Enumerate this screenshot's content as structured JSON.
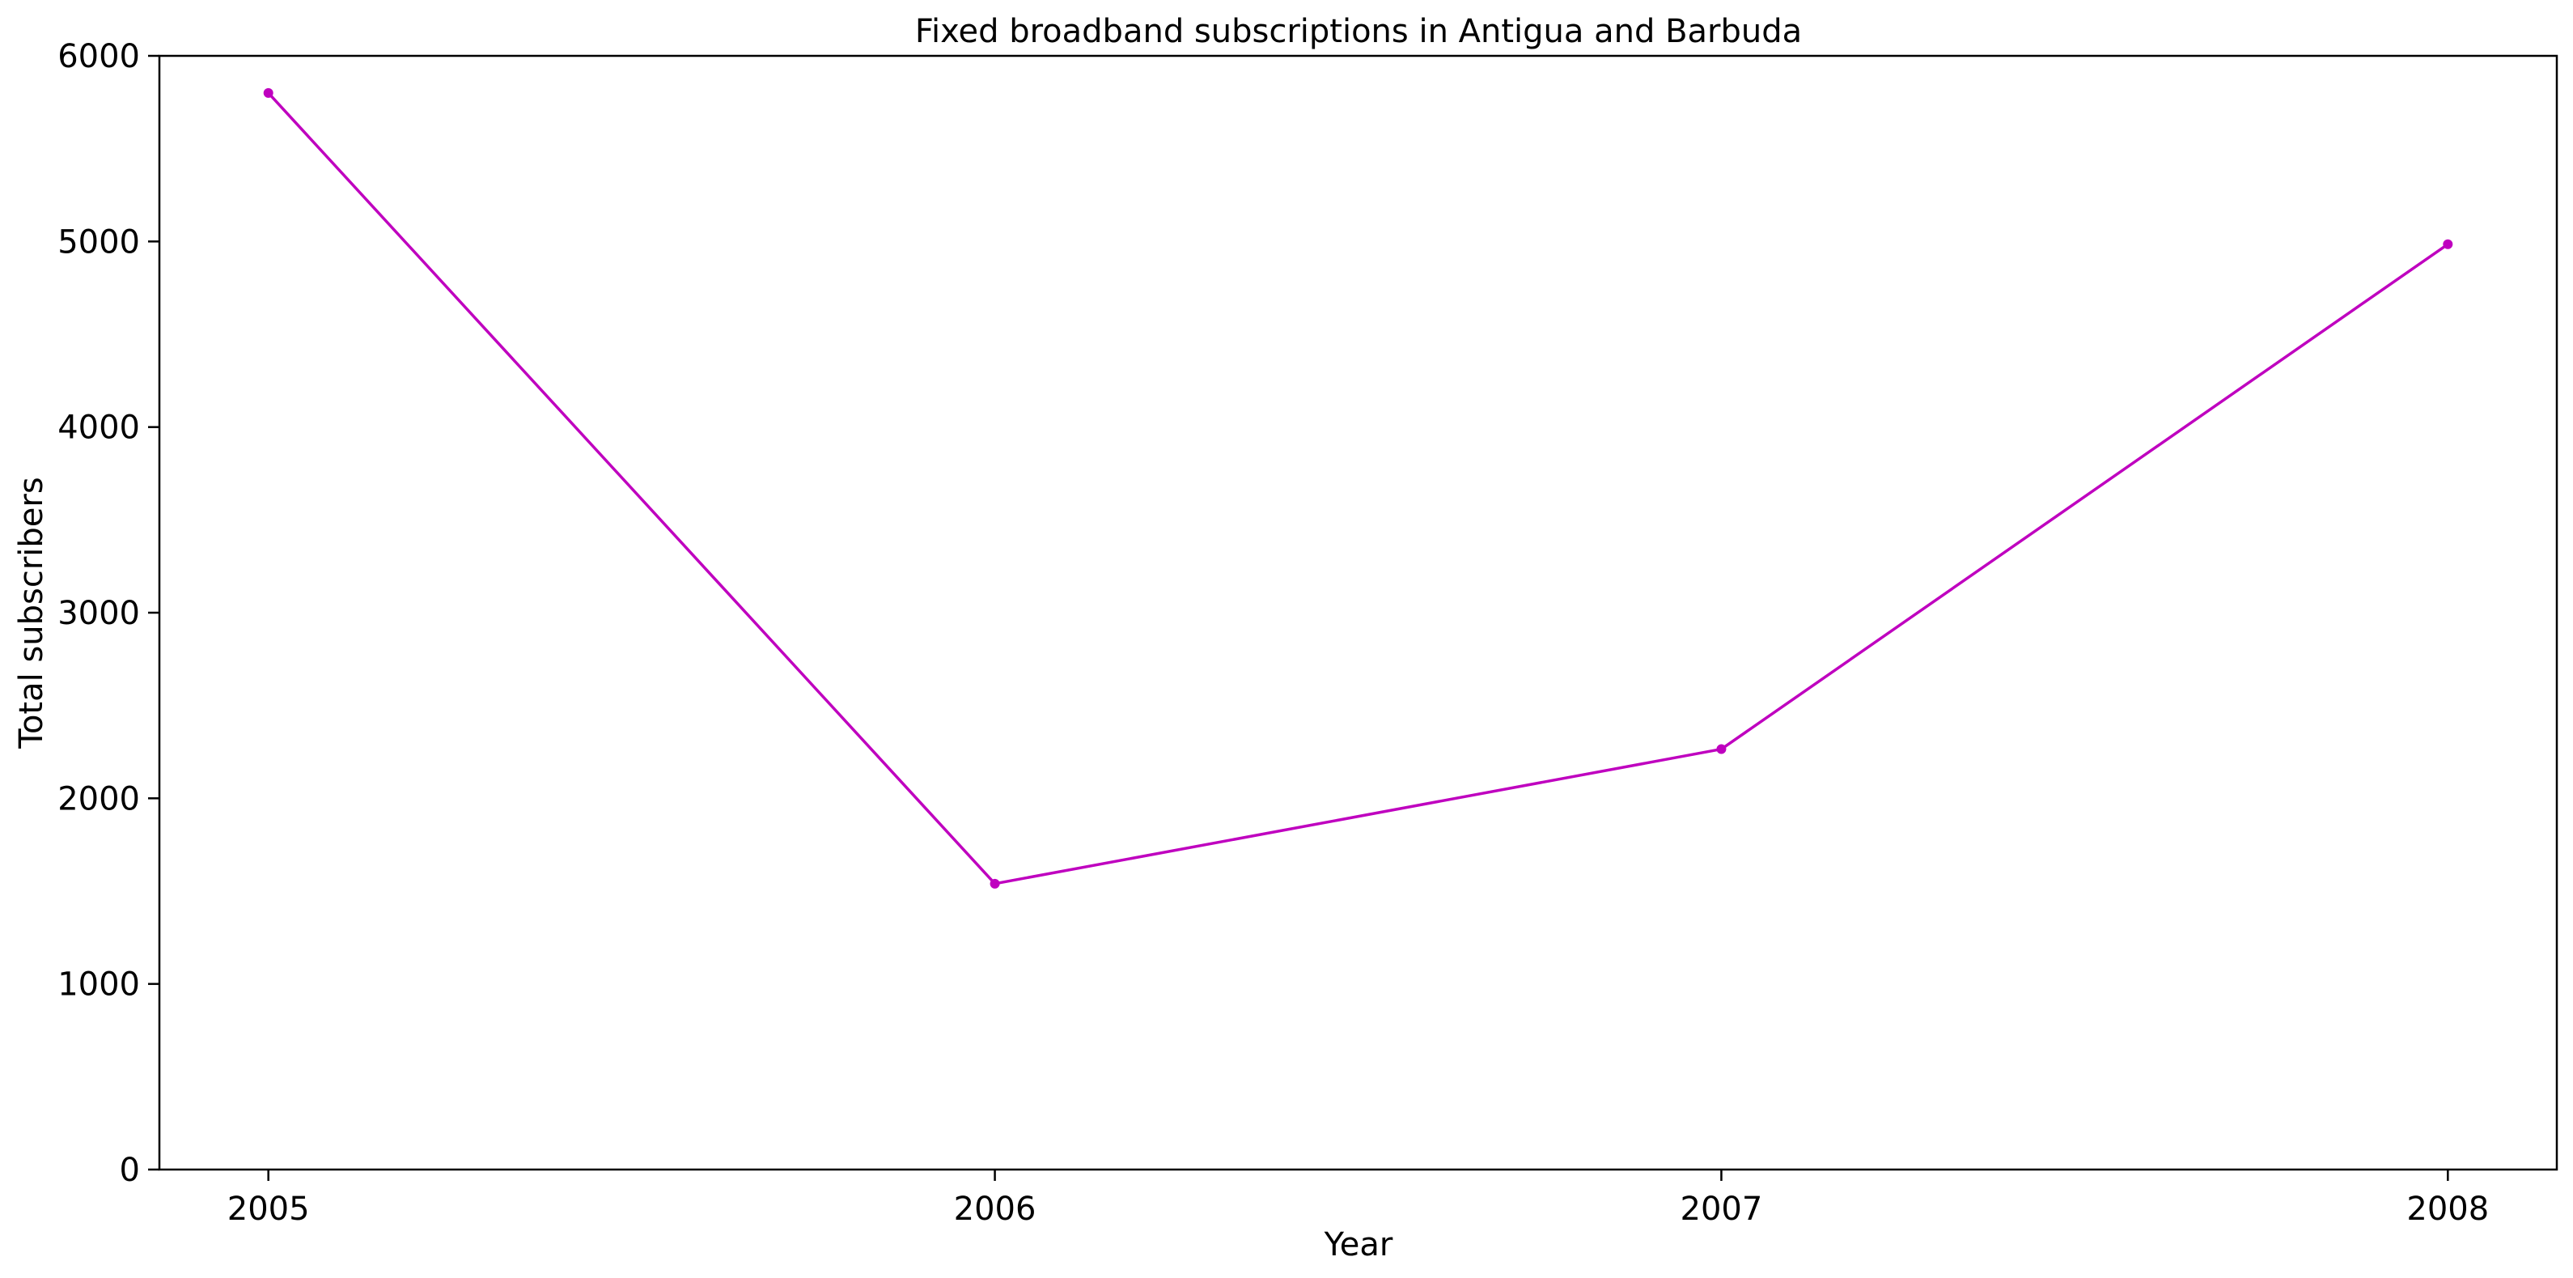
{
  "chart_data": {
    "type": "line",
    "title": "Fixed broadband subscriptions in Antigua and Barbuda",
    "xlabel": "Year",
    "ylabel": "Total subscribers",
    "x": [
      2005,
      2006,
      2007,
      2008
    ],
    "x_tick_labels": [
      "2005",
      "2006",
      "2007",
      "2008"
    ],
    "y_ticks": [
      0,
      1000,
      2000,
      3000,
      4000,
      5000,
      6000
    ],
    "y_tick_labels": [
      "0",
      "1000",
      "2000",
      "3000",
      "4000",
      "5000",
      "6000"
    ],
    "ylim": [
      0,
      6000
    ],
    "xlim": [
      2004.85,
      2008.15
    ],
    "series": [
      {
        "values": [
          5800,
          1540,
          2265,
          4985
        ],
        "color": "#bf00bf",
        "marker": "circle"
      }
    ],
    "grid": false,
    "legend": "none"
  }
}
